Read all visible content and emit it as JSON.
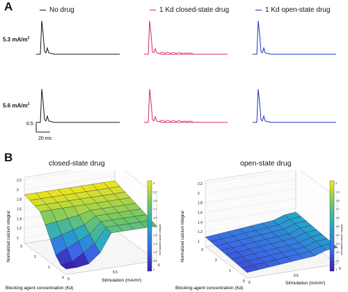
{
  "panel_a": {
    "letter": "A",
    "legend": [
      {
        "label": "No drug",
        "color": "#111111"
      },
      {
        "label": "1 Kd closed-state drug",
        "color": "#d8216c"
      },
      {
        "label": "1 Kd open-state drug",
        "color": "#1f2fc8"
      }
    ],
    "rows": [
      {
        "label": "5.3 mA/m",
        "label_sup": "2"
      },
      {
        "label": "5.6 mA/m",
        "label_sup": "2"
      }
    ],
    "scalebar": {
      "y_label": "0.5",
      "x_label": "20 ms"
    }
  },
  "panel_b": {
    "letter": "B",
    "charts": [
      {
        "title": "closed-state drug",
        "zlabel": "Normalized calcium integral",
        "xlabel": "Blocking agent concentration (Kd)",
        "ylabel": "Stimulation (mA/m²)",
        "z_ticks": [
          "2.2",
          "2",
          "1.8",
          "1.6",
          "1.4",
          "1.2",
          "1"
        ],
        "x_ticks": [
          "3",
          "2",
          "1",
          "0"
        ],
        "y_ticks": [
          "5",
          "5.5",
          "6"
        ],
        "colorbar_label": "Normalized calcium integral",
        "colorbar_ticks": [
          "2",
          "1.9",
          "1.8",
          "1.7",
          "1.6",
          "1.5",
          "1.4",
          "1.3",
          "1.2",
          "1.1",
          "1"
        ]
      },
      {
        "title": "open-state drug",
        "zlabel": "Normalized calcium integral",
        "xlabel": "Blocking agent concentration (Kd)",
        "ylabel": "Stimulation (mA/m²)",
        "z_ticks": [
          "2.2",
          "2",
          "1.8",
          "1.6",
          "1.4",
          "1.2",
          "1"
        ],
        "x_ticks": [
          "3",
          "2",
          "1",
          "0"
        ],
        "y_ticks": [
          "5",
          "5.5",
          "6"
        ],
        "colorbar_label": "Normalized calcium integral",
        "colorbar_ticks": [
          "2",
          "1.9",
          "1.8",
          "1.7",
          "1.6",
          "1.5",
          "1.4",
          "1.3",
          "1.2",
          "1.1",
          "1"
        ]
      }
    ]
  },
  "colors": {
    "no_drug": "#111111",
    "closed": "#d8216c",
    "open": "#1f2fc8"
  }
}
